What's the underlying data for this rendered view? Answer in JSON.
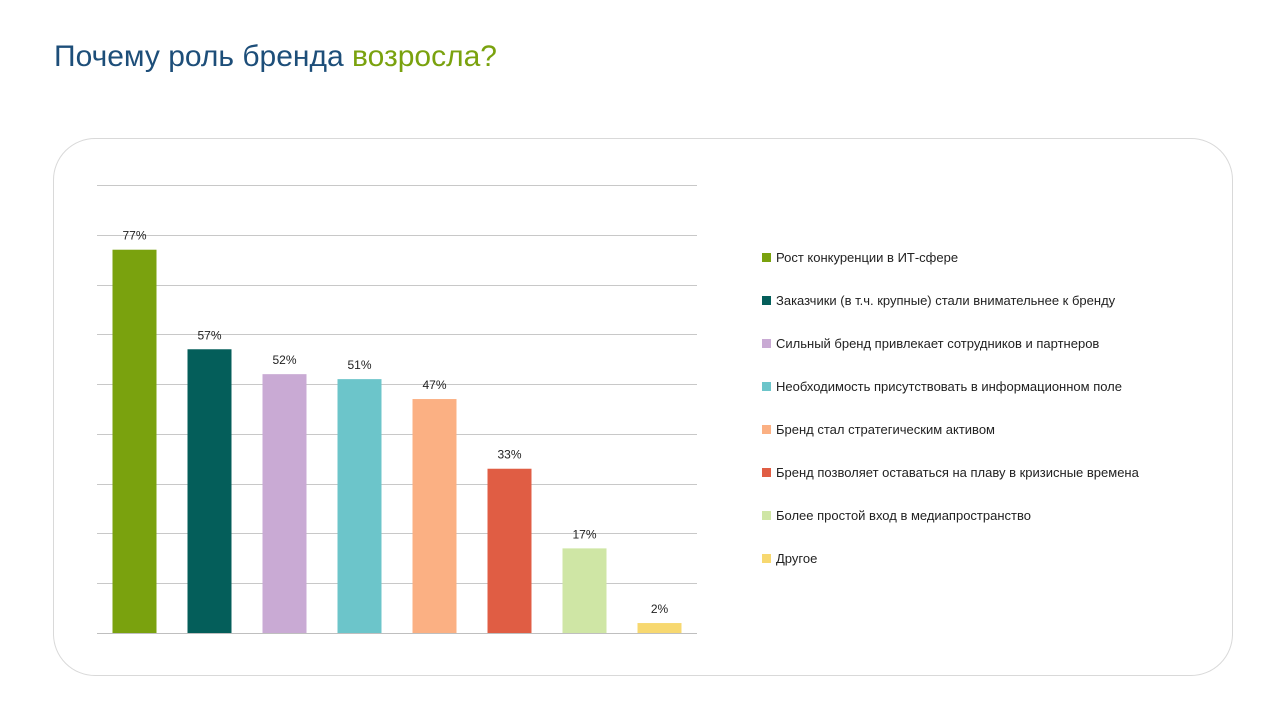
{
  "title": {
    "main": "Почему роль бренда ",
    "accent": "возросла?",
    "accent_color": "#7aa20e",
    "main_color": "#1d4e79"
  },
  "chart_data": {
    "type": "bar",
    "title": "",
    "xlabel": "",
    "ylabel": "",
    "ylim": [
      0,
      90
    ],
    "grid": true,
    "legend_position": "right",
    "categories": [
      "Рост конкуренции в ИТ-сфере",
      "Заказчики (в т.ч. крупные) стали внимательнее к бренду",
      "Сильный бренд привлекает сотрудников и партнеров",
      "Необходимость присутствовать в информационном поле",
      "Бренд стал стратегическим активом",
      "Бренд позволяет оставаться на плаву в кризисные времена",
      "Более простой  вход в медиапространство",
      "Другое"
    ],
    "values": [
      77,
      57,
      52,
      51,
      47,
      33,
      17,
      2
    ],
    "data_labels": [
      "77%",
      "57%",
      "52%",
      "51%",
      "47%",
      "33%",
      "17%",
      "2%"
    ],
    "colors": [
      "#7aa20e",
      "#045e5a",
      "#c9aad4",
      "#6cc5ca",
      "#fbb083",
      "#e05d44",
      "#cfe6a5",
      "#f7d870"
    ]
  }
}
